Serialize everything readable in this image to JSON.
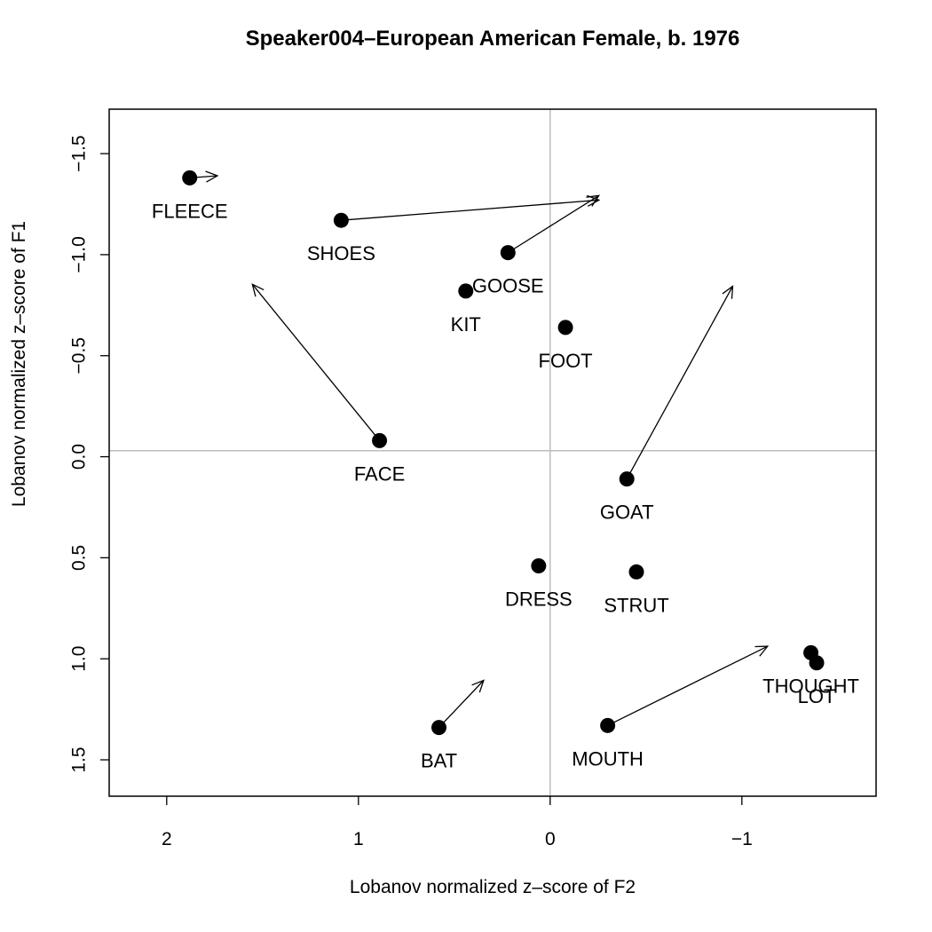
{
  "chart_data": {
    "type": "scatter",
    "title": "Speaker004–European American Female, b. 1976",
    "xlabel": "Lobanov normalized z–score of F2",
    "ylabel": "Lobanov normalized z–score of F1",
    "xlim": [
      2.3,
      -1.7
    ],
    "ylim": [
      1.68,
      -1.72
    ],
    "x_ticks": [
      2,
      1,
      0,
      -1
    ],
    "x_tick_labels": [
      "2",
      "1",
      "0",
      "−1"
    ],
    "y_ticks": [
      -1.5,
      -1.0,
      -0.5,
      0.0,
      0.5,
      1.0,
      1.5
    ],
    "y_tick_labels": [
      "−1.5",
      "−1.0",
      "−0.5",
      "0.0",
      "0.5",
      "1.0",
      "1.5"
    ],
    "reference_lines": {
      "x": 0.0,
      "y": -0.03
    },
    "points": [
      {
        "label": "FLEECE",
        "x": 1.88,
        "y": -1.38,
        "arrow_to": {
          "x": 1.74,
          "y": -1.39
        }
      },
      {
        "label": "SHOES",
        "x": 1.09,
        "y": -1.17,
        "arrow_to": {
          "x": -0.25,
          "y": -1.27
        }
      },
      {
        "label": "GOOSE",
        "x": 0.22,
        "y": -1.01,
        "arrow_to": {
          "x": -0.25,
          "y": -1.29
        }
      },
      {
        "label": "KIT",
        "x": 0.44,
        "y": -0.82,
        "arrow_to": null
      },
      {
        "label": "FOOT",
        "x": -0.08,
        "y": -0.64,
        "arrow_to": null
      },
      {
        "label": "FACE",
        "x": 0.89,
        "y": -0.08,
        "arrow_to": {
          "x": 1.55,
          "y": -0.85
        }
      },
      {
        "label": "GOAT",
        "x": -0.4,
        "y": 0.11,
        "arrow_to": {
          "x": -0.95,
          "y": -0.84
        }
      },
      {
        "label": "DRESS",
        "x": 0.06,
        "y": 0.54,
        "arrow_to": null
      },
      {
        "label": "STRUT",
        "x": -0.45,
        "y": 0.57,
        "arrow_to": null
      },
      {
        "label": "THOUGHT",
        "x": -1.36,
        "y": 0.97,
        "arrow_to": null
      },
      {
        "label": "LOT",
        "x": -1.39,
        "y": 1.02,
        "arrow_to": null
      },
      {
        "label": "MOUTH",
        "x": -0.3,
        "y": 1.33,
        "arrow_to": {
          "x": -1.13,
          "y": 0.94
        }
      },
      {
        "label": "BAT",
        "x": 0.58,
        "y": 1.34,
        "arrow_to": {
          "x": 0.35,
          "y": 1.11
        }
      }
    ]
  }
}
